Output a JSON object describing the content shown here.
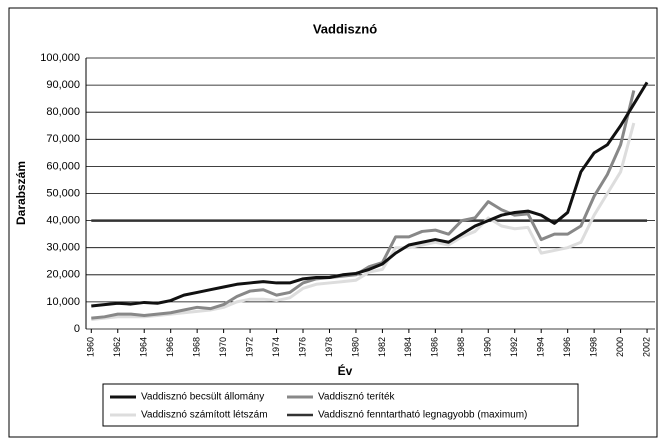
{
  "chart_data": {
    "type": "line",
    "title": "Vaddisznó",
    "x_label": "Év",
    "y_label": "Darabszám",
    "x": [
      1960,
      1961,
      1962,
      1963,
      1964,
      1965,
      1966,
      1967,
      1968,
      1969,
      1970,
      1971,
      1972,
      1973,
      1974,
      1975,
      1976,
      1977,
      1978,
      1979,
      1980,
      1981,
      1982,
      1983,
      1984,
      1985,
      1986,
      1987,
      1988,
      1989,
      1990,
      1991,
      1992,
      1993,
      1994,
      1995,
      1996,
      1997,
      1998,
      1999,
      2000,
      2001,
      2002
    ],
    "xlim": [
      1959.6,
      2002.6
    ],
    "xticks": [
      1960,
      1962,
      1964,
      1966,
      1968,
      1970,
      1972,
      1974,
      1976,
      1978,
      1980,
      1982,
      1984,
      1986,
      1988,
      1990,
      1992,
      1994,
      1996,
      1998,
      2000,
      2002
    ],
    "ylim": [
      0,
      100000
    ],
    "yticks": [
      0,
      {
        "value": 10000,
        "label": "10,000"
      },
      {
        "value": 20000,
        "label": "20,000"
      },
      {
        "value": 30000,
        "label": "30,000"
      },
      {
        "value": 40000,
        "label": "40,000"
      },
      {
        "value": 50000,
        "label": "50,000"
      },
      {
        "value": 60000,
        "label": "60,000"
      },
      {
        "value": 70000,
        "label": "70,000"
      },
      {
        "value": 80000,
        "label": "80,000"
      },
      {
        "value": 90000,
        "label": "90,000"
      },
      {
        "value": 100000,
        "label": "100,000"
      }
    ],
    "grid": true,
    "series": [
      {
        "name": "Vaddisznó becsült állomány",
        "color": "#111111",
        "width": 3,
        "values": [
          8500,
          9000,
          9500,
          9200,
          9800,
          9500,
          10500,
          12500,
          13500,
          14500,
          15500,
          16500,
          17000,
          17500,
          17000,
          17000,
          18500,
          19000,
          19000,
          20000,
          20500,
          22000,
          24000,
          28000,
          31000,
          32000,
          33000,
          32000,
          35000,
          38000,
          40000,
          42000,
          43000,
          43500,
          42000,
          39000,
          43000,
          58000,
          65000,
          68000,
          75000,
          83000,
          91000
        ]
      },
      {
        "name": "Vaddisznó teríték",
        "color": "#888888",
        "width": 3,
        "values": [
          4000,
          4500,
          5500,
          5500,
          5000,
          5500,
          6000,
          7000,
          8000,
          7500,
          9000,
          12000,
          14000,
          14500,
          12500,
          13500,
          17000,
          18500,
          19000,
          19500,
          20000,
          23000,
          24500,
          34000,
          34000,
          36000,
          36500,
          35000,
          40000,
          41000,
          47000,
          44000,
          42000,
          42500,
          33000,
          35000,
          35000,
          38000,
          49000,
          57000,
          68000,
          88000,
          null
        ]
      },
      {
        "name": "Vaddisznó számított létszám",
        "color": "#dddddd",
        "width": 3,
        "values": [
          3500,
          4000,
          4500,
          4500,
          4500,
          5000,
          5500,
          6000,
          6500,
          7000,
          8000,
          10000,
          11000,
          11000,
          10500,
          11500,
          15000,
          16500,
          17000,
          17500,
          18000,
          21000,
          22000,
          30000,
          30000,
          31000,
          32000,
          31000,
          34000,
          36000,
          41000,
          38000,
          37000,
          37500,
          28000,
          29000,
          30000,
          32000,
          42000,
          50000,
          58000,
          76000,
          null
        ]
      },
      {
        "name": "Vaddisznó fenntartható legnagyobb (maximum)",
        "color": "#333333",
        "width": 2.5,
        "values": [
          40000,
          40000,
          40000,
          40000,
          40000,
          40000,
          40000,
          40000,
          40000,
          40000,
          40000,
          40000,
          40000,
          40000,
          40000,
          40000,
          40000,
          40000,
          40000,
          40000,
          40000,
          40000,
          40000,
          40000,
          40000,
          40000,
          40000,
          40000,
          40000,
          40000,
          40000,
          40000,
          40000,
          40000,
          40000,
          40000,
          40000,
          40000,
          40000,
          40000,
          40000,
          40000,
          40000
        ]
      }
    ]
  }
}
